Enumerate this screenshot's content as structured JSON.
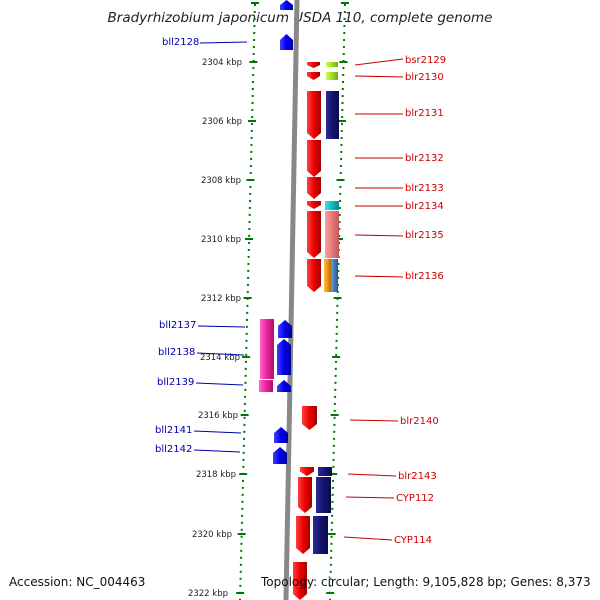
{
  "title": "Bradyrhizobium japonicum USDA 110, complete genome",
  "footer": {
    "accession": "Accession: NC_004463",
    "summary": "Topology: circular; Length: 9,105,828 bp; Genes: 8,373"
  },
  "colors": {
    "forward_label": "#cc0000",
    "reverse_label": "#0000aa",
    "tick": "#007700",
    "backbone": "#888888"
  },
  "scale": {
    "unit": "kbp",
    "major_ticks": [
      {
        "kbp": 2304,
        "label": "2304 kbp"
      },
      {
        "kbp": 2306,
        "label": "2306 kbp"
      },
      {
        "kbp": 2308,
        "label": "2308 kbp"
      },
      {
        "kbp": 2310,
        "label": "2310 kbp"
      },
      {
        "kbp": 2312,
        "label": "2312 kbp"
      },
      {
        "kbp": 2314,
        "label": "2314 kbp"
      },
      {
        "kbp": 2316,
        "label": "2316 kbp"
      },
      {
        "kbp": 2318,
        "label": "2318 kbp"
      },
      {
        "kbp": 2320,
        "label": "2320 kbp"
      },
      {
        "kbp": 2322,
        "label": "2322 kbp"
      }
    ]
  },
  "reverse_genes": [
    {
      "id": "bll2128",
      "label": "bll2128"
    },
    {
      "id": "bll2137",
      "label": "bll2137"
    },
    {
      "id": "bll2138",
      "label": "bll2138"
    },
    {
      "id": "bll2139",
      "label": "bll2139"
    },
    {
      "id": "bll2141",
      "label": "bll2141"
    },
    {
      "id": "bll2142",
      "label": "bll2142"
    }
  ],
  "forward_genes": [
    {
      "id": "bsr2129",
      "label": "bsr2129"
    },
    {
      "id": "blr2130",
      "label": "blr2130"
    },
    {
      "id": "blr2131",
      "label": "blr2131"
    },
    {
      "id": "blr2132",
      "label": "blr2132"
    },
    {
      "id": "blr2133",
      "label": "blr2133"
    },
    {
      "id": "blr2134",
      "label": "blr2134"
    },
    {
      "id": "blr2135",
      "label": "blr2135"
    },
    {
      "id": "blr2136",
      "label": "blr2136"
    },
    {
      "id": "blr2140",
      "label": "blr2140"
    },
    {
      "id": "blr2143",
      "label": "blr2143"
    },
    {
      "id": "CYP112",
      "label": "CYP112"
    },
    {
      "id": "CYP114",
      "label": "CYP114"
    }
  ]
}
